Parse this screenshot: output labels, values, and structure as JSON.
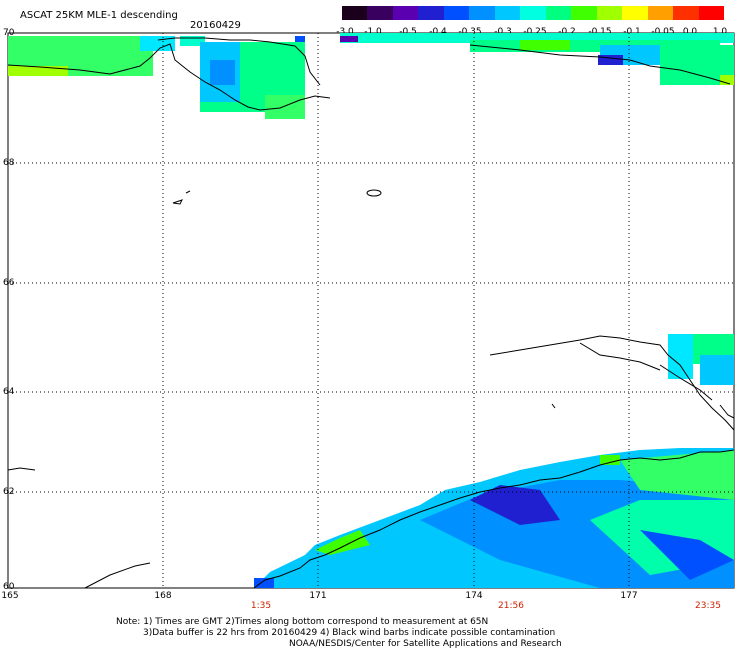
{
  "header": {
    "title": "ASCAT 25KM MLE-1 descending",
    "date": "20160429"
  },
  "colorbar": {
    "labels": [
      "-3.0",
      "-1.0",
      "-0.5",
      "-0.4",
      "-0.35",
      "-0.3",
      "-0.25",
      "-0.2",
      "-0.15",
      "-0.1",
      "-0.05",
      "0.0",
      "1.0"
    ],
    "colors": [
      "#1a001a",
      "#3a0060",
      "#5a00b0",
      "#2020d0",
      "#0050ff",
      "#0090ff",
      "#00c8ff",
      "#00ffe0",
      "#00ff80",
      "#40ff00",
      "#a0ff00",
      "#ffff00",
      "#ffa000",
      "#ff3000",
      "#ff0000"
    ]
  },
  "axes": {
    "lat_labels": [
      "70",
      "68",
      "66",
      "64",
      "62",
      "60"
    ],
    "lon_labels": [
      "165",
      "168",
      "171",
      "174",
      "177"
    ],
    "time_labels": [
      "1:35",
      "21:56",
      "23:35"
    ]
  },
  "notes": {
    "line1": "Note: 1) Times are GMT 2)Times along bottom correspond to measurement at 65N",
    "line2": "3)Data buffer is 22 hrs from 20160429 4) Black wind barbs indicate possible contamination",
    "line3": "NOAA/NESDIS/Center for Satellite Applications and Research"
  }
}
